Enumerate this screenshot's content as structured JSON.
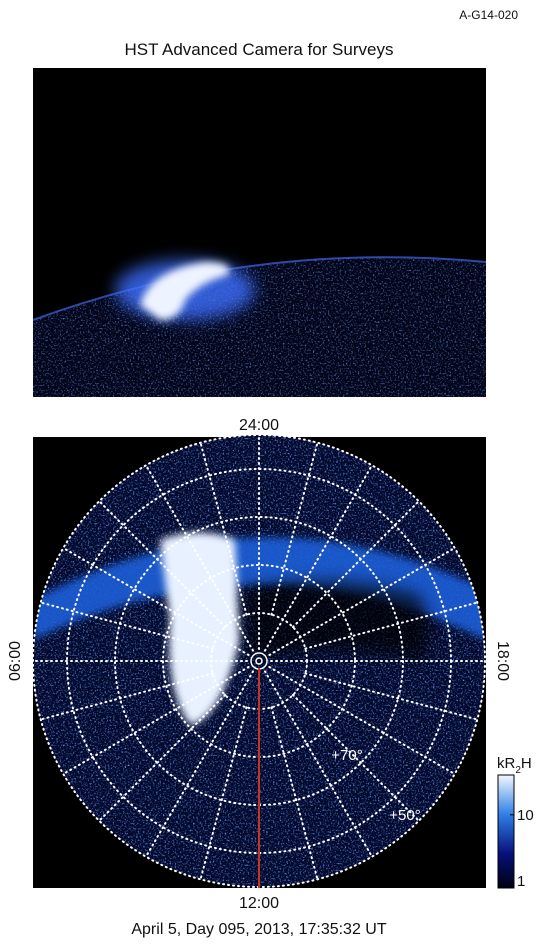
{
  "figure_id": "A-G14-020",
  "top_panel": {
    "title": "HST Advanced Camera for Surveys"
  },
  "polar_panel": {
    "top_label": "24:00",
    "left_label": "06:00",
    "right_label": "18:00",
    "bottom_label": "12:00",
    "latitude_labels": [
      "+70°",
      "+50°"
    ]
  },
  "colorbar": {
    "unit_main": "kR",
    "unit_sub": "2",
    "unit_end": "H",
    "log_scale": true,
    "range": [
      1,
      35
    ],
    "ticks": [
      1,
      10
    ]
  },
  "caption": "April 5, Day 095, 2013, 17:35:32 UT"
}
